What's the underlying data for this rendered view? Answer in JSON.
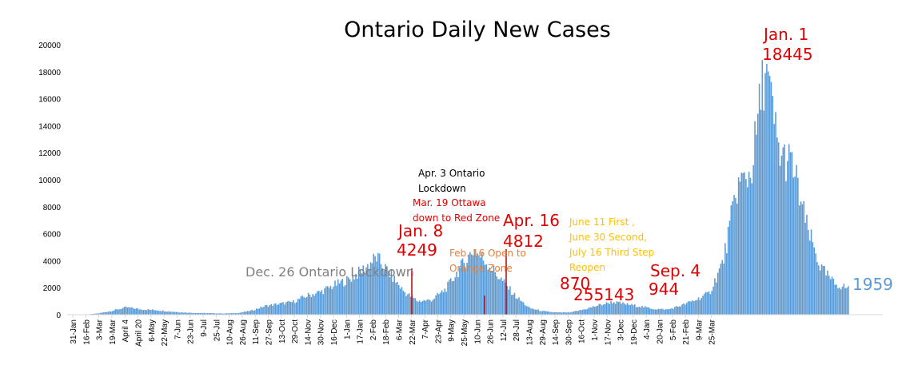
{
  "chart_data": {
    "type": "bar",
    "title": "Ontario Daily New Cases",
    "xlabel": "",
    "ylabel": "",
    "ylim": [
      0,
      20000
    ],
    "yticks": [
      0,
      2000,
      4000,
      6000,
      8000,
      10000,
      12000,
      14000,
      16000,
      18000,
      20000
    ],
    "xticks": [
      "31-Jan",
      "16-Feb",
      "3-Mar",
      "19-Mar",
      "April 4",
      "April 20",
      "6-May",
      "22-May",
      "7-Jun",
      "23-Jun",
      "9-Jul",
      "25-Jul",
      "10-Aug",
      "26-Aug",
      "11-Sep",
      "27-Sep",
      "13-Oct",
      "29-Oct",
      "14-Nov",
      "30-Nov",
      "16-Dec",
      "1-Jan",
      "17-Jan",
      "2-Feb",
      "18-Feb",
      "6-Mar",
      "22-Mar",
      "7-Apr",
      "23-Apr",
      "9-May",
      "25-May",
      "10-Jun",
      "26-Jun",
      "12-Jul",
      "28-Jul",
      "13-Aug",
      "29-Aug",
      "14-Sep",
      "30-Sep",
      "16-Oct",
      "1-Nov",
      "17-Nov",
      "3-Dec",
      "19-Dec",
      "4-Jan",
      "20-Jan",
      "5-Feb",
      "21-Feb",
      "9-Mar",
      "25-Mar"
    ],
    "grid": false,
    "bar_color": "#5b9bd5",
    "marker_color": "#c00000",
    "keypoints": [
      {
        "label": "31-Jan",
        "value": 0
      },
      {
        "label": "10-Mar",
        "value": 0
      },
      {
        "label": "19-Mar",
        "value": 100
      },
      {
        "label": "1-Apr",
        "value": 300
      },
      {
        "label": "April 20",
        "value": 550
      },
      {
        "label": "6-May",
        "value": 400
      },
      {
        "label": "22-May",
        "value": 350
      },
      {
        "label": "7-Jun",
        "value": 250
      },
      {
        "label": "23-Jun",
        "value": 170
      },
      {
        "label": "9-Jul",
        "value": 130
      },
      {
        "label": "25-Jul",
        "value": 110
      },
      {
        "label": "10-Aug",
        "value": 90
      },
      {
        "label": "26-Aug",
        "value": 120
      },
      {
        "label": "11-Sep",
        "value": 300
      },
      {
        "label": "27-Sep",
        "value": 650
      },
      {
        "label": "13-Oct",
        "value": 800
      },
      {
        "label": "29-Oct",
        "value": 950
      },
      {
        "label": "14-Nov",
        "value": 1400
      },
      {
        "label": "30-Nov",
        "value": 1700
      },
      {
        "label": "16-Dec",
        "value": 2200
      },
      {
        "label": "26-Dec",
        "value": 2600
      },
      {
        "label": "1-Jan",
        "value": 3300
      },
      {
        "label": "8-Jan",
        "value": 4249
      },
      {
        "label": "17-Jan",
        "value": 3000
      },
      {
        "label": "2-Feb",
        "value": 1700
      },
      {
        "label": "18-Feb",
        "value": 1000
      },
      {
        "label": "6-Mar",
        "value": 1100
      },
      {
        "label": "22-Mar",
        "value": 1900
      },
      {
        "label": "7-Apr",
        "value": 3400
      },
      {
        "label": "16-Apr",
        "value": 4812
      },
      {
        "label": "23-Apr",
        "value": 3800
      },
      {
        "label": "9-May",
        "value": 2600
      },
      {
        "label": "25-May",
        "value": 1400
      },
      {
        "label": "10-Jun",
        "value": 500
      },
      {
        "label": "26-Jun",
        "value": 255
      },
      {
        "label": "12-Jul",
        "value": 160
      },
      {
        "label": "28-Jul",
        "value": 170
      },
      {
        "label": "13-Aug",
        "value": 400
      },
      {
        "label": "29-Aug",
        "value": 700
      },
      {
        "label": "4-Sep",
        "value": 944
      },
      {
        "label": "14-Sep",
        "value": 780
      },
      {
        "label": "30-Sep",
        "value": 620
      },
      {
        "label": "16-Oct",
        "value": 430
      },
      {
        "label": "1-Nov",
        "value": 380
      },
      {
        "label": "17-Nov",
        "value": 700
      },
      {
        "label": "3-Dec",
        "value": 1100
      },
      {
        "label": "12-Dec",
        "value": 1600
      },
      {
        "label": "19-Dec",
        "value": 4000
      },
      {
        "label": "23-Dec",
        "value": 9500
      },
      {
        "label": "29-Dec",
        "value": 10500
      },
      {
        "label": "1-Jan",
        "value": 18445
      },
      {
        "label": "4-Jan",
        "value": 12000
      },
      {
        "label": "10-Jan",
        "value": 11000
      },
      {
        "label": "20-Jan",
        "value": 6500
      },
      {
        "label": "5-Feb",
        "value": 3500
      },
      {
        "label": "21-Feb",
        "value": 2300
      },
      {
        "label": "26-Feb",
        "value": 1959
      }
    ],
    "annotations": [
      {
        "text": "Dec. 26 Ontario Lockdown",
        "color": "#7f7f7f",
        "size": 16
      },
      {
        "text": "Jan. 8",
        "color": "#e00000",
        "size": 20
      },
      {
        "text": "4249",
        "color": "#e00000",
        "size": 20
      },
      {
        "text": "Apr. 3 Ontario",
        "color": "#000000",
        "size": 12
      },
      {
        "text": "Lockdown",
        "color": "#000000",
        "size": 12
      },
      {
        "text": "Mar. 19 Ottawa",
        "color": "#e00000",
        "size": 12
      },
      {
        "text": "down to Red Zone",
        "color": "#e00000",
        "size": 12
      },
      {
        "text": "Feb. 16 Open to",
        "color": "#ed7d31",
        "size": 12
      },
      {
        "text": "Orange Zone",
        "color": "#ed7d31",
        "size": 12
      },
      {
        "text": "Apr. 16",
        "color": "#e00000",
        "size": 20
      },
      {
        "text": "4812",
        "color": "#e00000",
        "size": 20
      },
      {
        "text": "June 11 First ,",
        "color": "#ffc000",
        "size": 12
      },
      {
        "text": "June 30 Second,",
        "color": "#ffc000",
        "size": 12
      },
      {
        "text": "July 16 Third Step",
        "color": "#ffc000",
        "size": 12
      },
      {
        "text": "Reopen",
        "color": "#ffc000",
        "size": 12
      },
      {
        "text": "870",
        "color": "#e00000",
        "size": 20
      },
      {
        "text": "255143",
        "color": "#e00000",
        "size": 20
      },
      {
        "text": "Sep. 4",
        "color": "#e00000",
        "size": 20
      },
      {
        "text": "944",
        "color": "#e00000",
        "size": 20
      },
      {
        "text": "Jan. 1",
        "color": "#e00000",
        "size": 20
      },
      {
        "text": "18445",
        "color": "#e00000",
        "size": 20
      },
      {
        "text": "1959",
        "color": "#5b9bd5",
        "size": 20
      }
    ]
  }
}
